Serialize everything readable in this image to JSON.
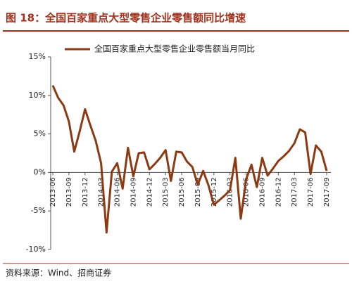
{
  "chart_data": {
    "type": "line",
    "title": "图 18：全国百家重点大型零售企业零售额同比增速",
    "source": "资料来源：Wind、招商证券",
    "categories": [
      "2013-06",
      null,
      null,
      "2013-09",
      null,
      null,
      "2013-12",
      null,
      null,
      "2014-03",
      null,
      null,
      "2014-06",
      null,
      null,
      "2014-09",
      null,
      null,
      "2014-12",
      null,
      null,
      "2015-03",
      null,
      null,
      "2015-06",
      null,
      null,
      "2015-09",
      null,
      null,
      "2015-12",
      null,
      null,
      "2016-03",
      null,
      null,
      "2016-06",
      null,
      null,
      "2016-09",
      null,
      null,
      "2016-12",
      null,
      null,
      "2017-03",
      null,
      null,
      "2017-06",
      null,
      null,
      "2017-09"
    ],
    "series": [
      {
        "name": "全国百家重点大型零售企业零售额当月同比",
        "color": "#8b3a12",
        "values": [
          11.3,
          9.7,
          8.7,
          6.6,
          2.7,
          5.3,
          8.2,
          6.1,
          4.1,
          1.2,
          -7.8,
          0.1,
          1.2,
          -2.1,
          3.2,
          -0.5,
          2.5,
          2.6,
          0.4,
          1.1,
          1.9,
          2.9,
          -1.1,
          2.7,
          2.6,
          1.4,
          0.7,
          -1.6,
          0.2,
          -1.7,
          -4.2,
          -3.6,
          -3.0,
          -2.3,
          1.9,
          -6.0,
          -0.9,
          1.0,
          -1.9,
          1.9,
          -0.4,
          0.5,
          1.5,
          2.1,
          2.8,
          3.8,
          5.6,
          5.2,
          -0.2,
          3.5,
          2.7,
          0.2
        ]
      }
    ],
    "ylim": [
      -10,
      15
    ],
    "yticks": [
      {
        "value": -10,
        "label": "-10%"
      },
      {
        "value": -5,
        "label": "-5%"
      },
      {
        "value": 0,
        "label": "0%"
      },
      {
        "value": 5,
        "label": "5%"
      },
      {
        "value": 10,
        "label": "10%"
      },
      {
        "value": 15,
        "label": "15%"
      }
    ],
    "grid": false,
    "legend": "top"
  }
}
